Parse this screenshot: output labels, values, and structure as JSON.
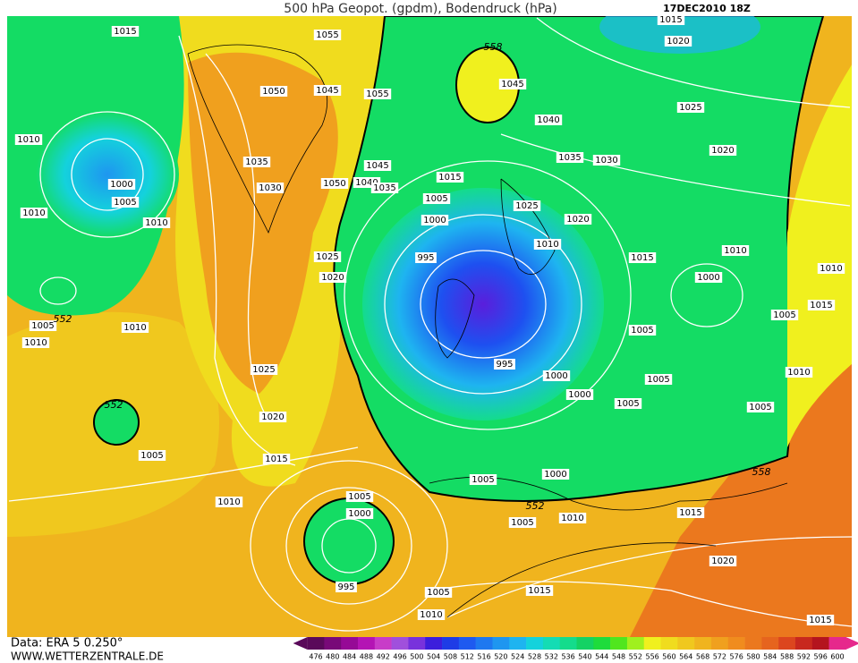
{
  "header": {
    "title": "500 hPa Geopot. (gpdm), Bodendruck (hPa)",
    "date": "17DEC2010 18Z"
  },
  "footer": {
    "source": "Data: ERA 5 0.250°",
    "website": "WWW.WETTERZENTRALE.DE"
  },
  "colorbar": {
    "values": [
      476,
      480,
      484,
      488,
      492,
      496,
      500,
      504,
      508,
      512,
      516,
      520,
      524,
      528,
      532,
      536,
      540,
      544,
      548,
      552,
      556,
      560,
      564,
      568,
      572,
      576,
      580,
      584,
      588,
      592,
      596,
      600
    ],
    "colors": [
      "#5a0a5a",
      "#780a78",
      "#960a96",
      "#b414b4",
      "#c83cc8",
      "#a050dc",
      "#7832dc",
      "#3c1edc",
      "#1e3ce6",
      "#1e5af0",
      "#1e78f0",
      "#1e96f0",
      "#1eb4f0",
      "#14d2dc",
      "#14dcb4",
      "#14dc8c",
      "#14d264",
      "#1edc3c",
      "#50e61e",
      "#a0f01e",
      "#f0f01e",
      "#f0dc1e",
      "#f0c81e",
      "#f0b41e",
      "#f0a01e",
      "#f08c1e",
      "#eb781e",
      "#e6641e",
      "#dc461e",
      "#c8281e",
      "#b4141e",
      "#e6288c"
    ]
  },
  "isobar_labels": [
    "1015",
    "1055",
    "1050",
    "1045",
    "1055",
    "1010",
    "1000",
    "1005",
    "1010",
    "1010",
    "1035",
    "1030",
    "1050",
    "1045",
    "1040",
    "1035",
    "1015",
    "1005",
    "1000",
    "995",
    "1025",
    "1020",
    "558",
    "1045",
    "1040",
    "1035",
    "1030",
    "1025",
    "1020",
    "1010",
    "1015",
    "1020",
    "1015",
    "1025",
    "1020",
    "1010",
    "1000",
    "1010",
    "1015",
    "1005",
    "1005",
    "995",
    "1000",
    "1000",
    "1005",
    "1005",
    "1010",
    "1005",
    "1005",
    "552",
    "1010",
    "1010",
    "1025",
    "1020",
    "552",
    "1005",
    "1015",
    "1010",
    "1005",
    "1000",
    "995",
    "1000",
    "1005",
    "552",
    "1005",
    "1010",
    "1015",
    "558",
    "1020",
    "1015",
    "1005",
    "1010",
    "1015"
  ]
}
